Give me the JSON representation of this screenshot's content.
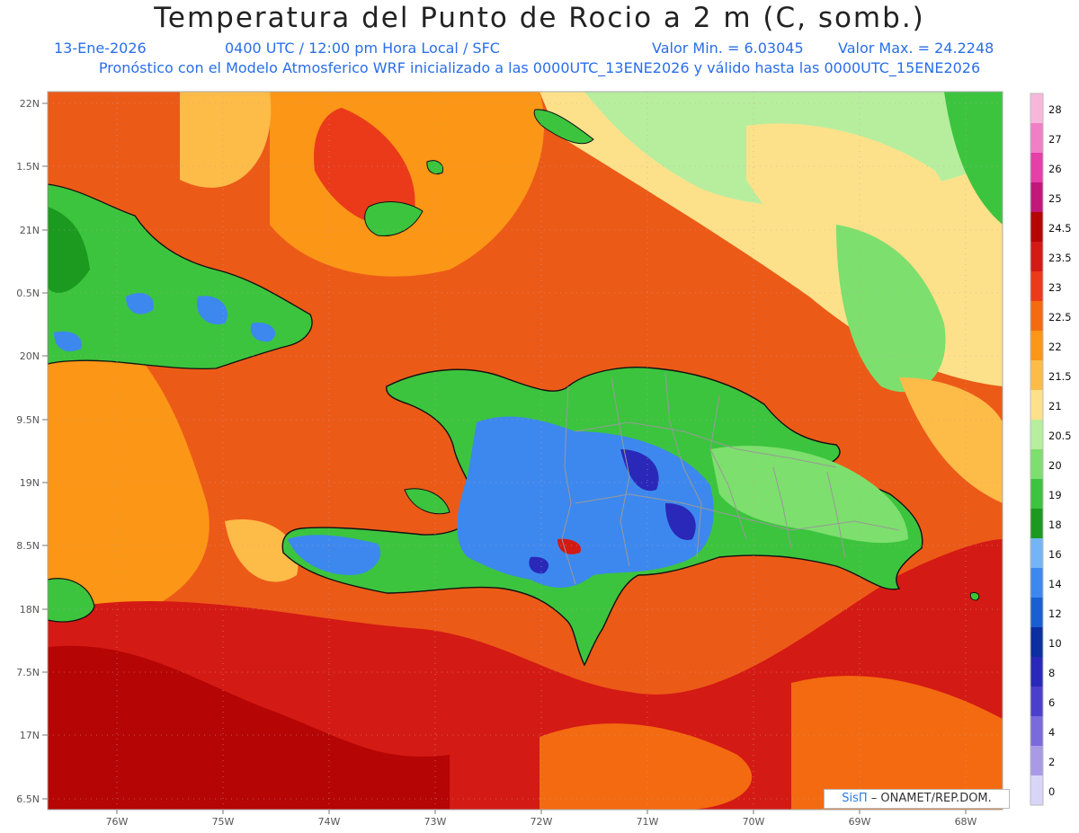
{
  "header": {
    "title": "Temperatura del Punto de Rocio a 2 m (C, somb.)",
    "date": "13-Ene-2026",
    "time": "0400 UTC / 12:00 pm Hora Local / SFC",
    "min_value": "Valor Min. = 6.03045",
    "max_value": "Valor Max. = 24.2248",
    "model_line": "Pronóstico con el Modelo Atmosferico WRF inicializado a las 0000UTC_13ENE2026 y válido hasta las  0000UTC_15ENE2026"
  },
  "axes": {
    "lat_labels": [
      "22N",
      "1.5N",
      "21N",
      "0.5N",
      "20N",
      "9.5N",
      "19N",
      "8.5N",
      "18N",
      "7.5N",
      "17N",
      "6.5N"
    ],
    "lon_labels": [
      "76W",
      "75W",
      "74W",
      "73W",
      "72W",
      "71W",
      "70W",
      "69W",
      "68W"
    ]
  },
  "colorbar": {
    "labels": [
      "28",
      "27",
      "26",
      "25",
      "24.5",
      "23.5",
      "23",
      "22.5",
      "22",
      "21.5",
      "21",
      "20.5",
      "20",
      "19",
      "18",
      "16",
      "14",
      "12",
      "10",
      "8",
      "6",
      "4",
      "2",
      "0"
    ],
    "colors": [
      "#f7b7da",
      "#f07fc5",
      "#e53fa8",
      "#c2187a",
      "#b50505",
      "#d41a14",
      "#ea3a1a",
      "#f36a10",
      "#fb9616",
      "#fdbb48",
      "#fde18a",
      "#b6ee9e",
      "#7ddf6d",
      "#3cc43e",
      "#1b9a1f",
      "#73b5f6",
      "#3d88ee",
      "#195ed2",
      "#0b2ea0",
      "#2a28b8",
      "#4c3fcb",
      "#7a6adb",
      "#a99ae8",
      "#d8d6f8"
    ]
  },
  "palette": {
    "sea_orange": "#ec5a18",
    "sea_red": "#d92a16",
    "sea_yellow": "#fcd36a",
    "land_green": "#3fbd40",
    "land_blue": "#3d88ee",
    "land_dark": "#2a28b8",
    "coast": "#111111",
    "border": "#999999"
  },
  "credit": {
    "logo": "SisΠ",
    "text": "– ONAMET/REP.DOM."
  }
}
